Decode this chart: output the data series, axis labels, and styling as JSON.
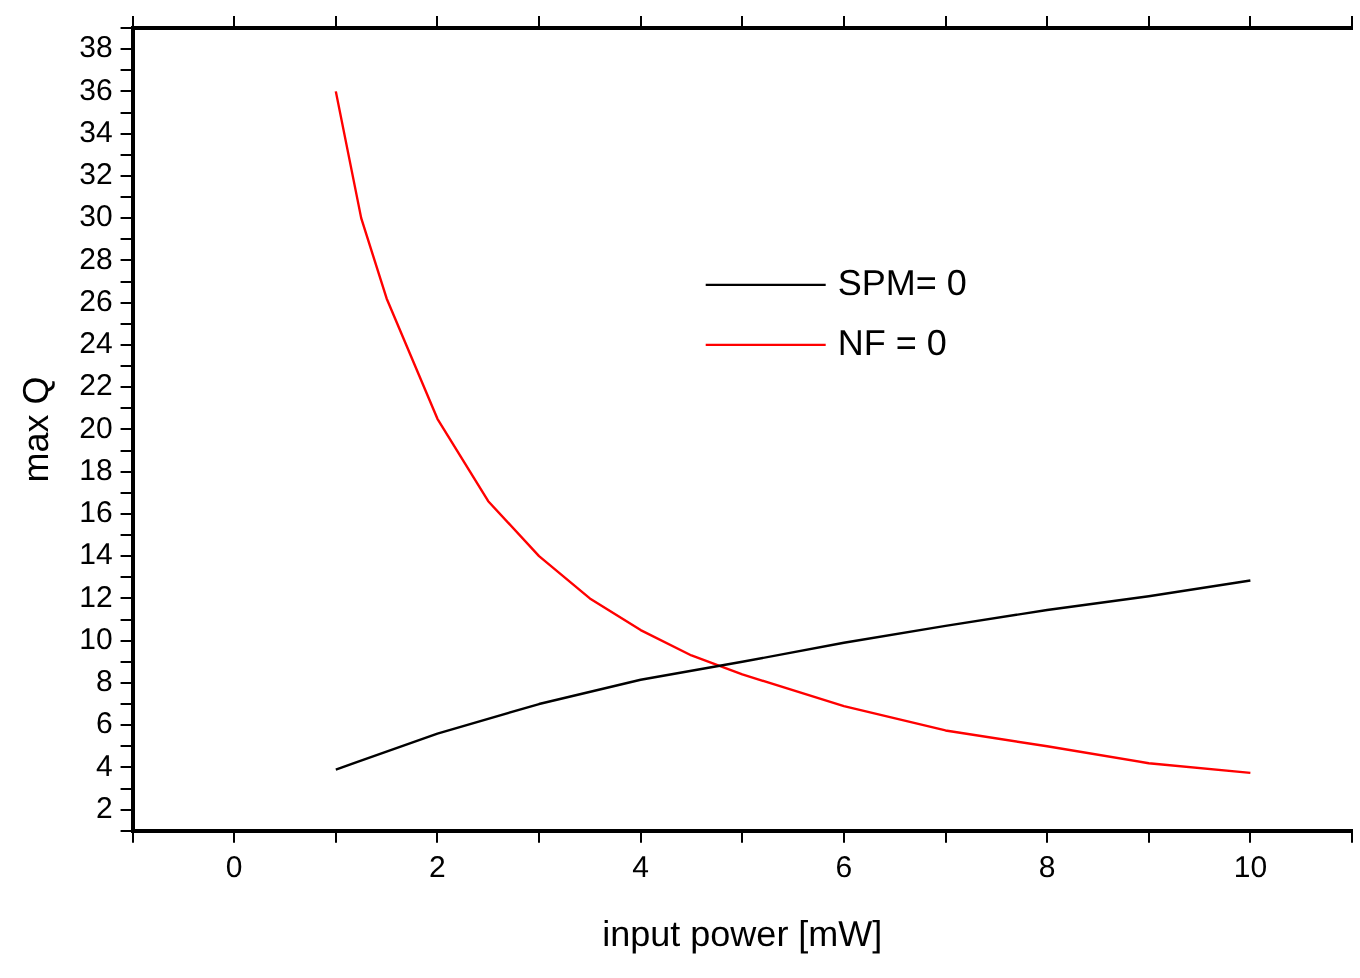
{
  "chart_data": {
    "type": "line",
    "xlabel": "input power [mW]",
    "ylabel": "max Q",
    "xlim": [
      -1,
      11
    ],
    "xticks": [
      {
        "value": -1,
        "label": null
      },
      0,
      {
        "value": 1,
        "label": null
      },
      2,
      {
        "value": 3,
        "label": null
      },
      4,
      {
        "value": 5,
        "label": null
      },
      6,
      {
        "value": 7,
        "label": null
      },
      8,
      {
        "value": 9,
        "label": null
      },
      10,
      {
        "value": 11,
        "label": null
      }
    ],
    "ylim": [
      1,
      39
    ],
    "yticks": [
      {
        "value": 1,
        "label": null
      },
      2,
      {
        "value": 3,
        "label": null
      },
      4,
      {
        "value": 5,
        "label": null
      },
      6,
      {
        "value": 7,
        "label": null
      },
      8,
      {
        "value": 9,
        "label": null
      },
      10,
      {
        "value": 11,
        "label": null
      },
      12,
      {
        "value": 13,
        "label": null
      },
      14,
      {
        "value": 15,
        "label": null
      },
      16,
      {
        "value": 17,
        "label": null
      },
      18,
      {
        "value": 19,
        "label": null
      },
      20,
      {
        "value": 21,
        "label": null
      },
      22,
      {
        "value": 23,
        "label": null
      },
      24,
      {
        "value": 25,
        "label": null
      },
      26,
      {
        "value": 27,
        "label": null
      },
      28,
      {
        "value": 29,
        "label": null
      },
      30,
      {
        "value": 31,
        "label": null
      },
      32,
      {
        "value": 33,
        "label": null
      },
      34,
      {
        "value": 35,
        "label": null
      },
      36,
      {
        "value": 37,
        "label": null
      },
      38,
      {
        "value": 39,
        "label": null
      }
    ],
    "grid": false,
    "legend": "top right",
    "marker": "none",
    "line_style": "solid",
    "series": [
      {
        "name": "SPM= 0",
        "color": "#000000",
        "x": [
          1,
          2,
          3,
          4,
          5,
          6,
          7,
          8,
          9,
          10
        ],
        "values": [
          3.9,
          5.6,
          7.0,
          8.15,
          9.0,
          9.9,
          10.7,
          11.45,
          12.1,
          12.85
        ]
      },
      {
        "name": "NF = 0",
        "color": "#ff0000",
        "x": [
          1,
          1.25,
          1.5,
          2,
          2.5,
          3,
          3.5,
          4,
          4.5,
          5,
          6,
          7,
          8,
          9,
          10
        ],
        "values": [
          36,
          30,
          26.2,
          20.5,
          16.6,
          14,
          12,
          10.5,
          9.3,
          8.4,
          6.9,
          5.75,
          5,
          4.2,
          3.74
        ]
      }
    ]
  }
}
